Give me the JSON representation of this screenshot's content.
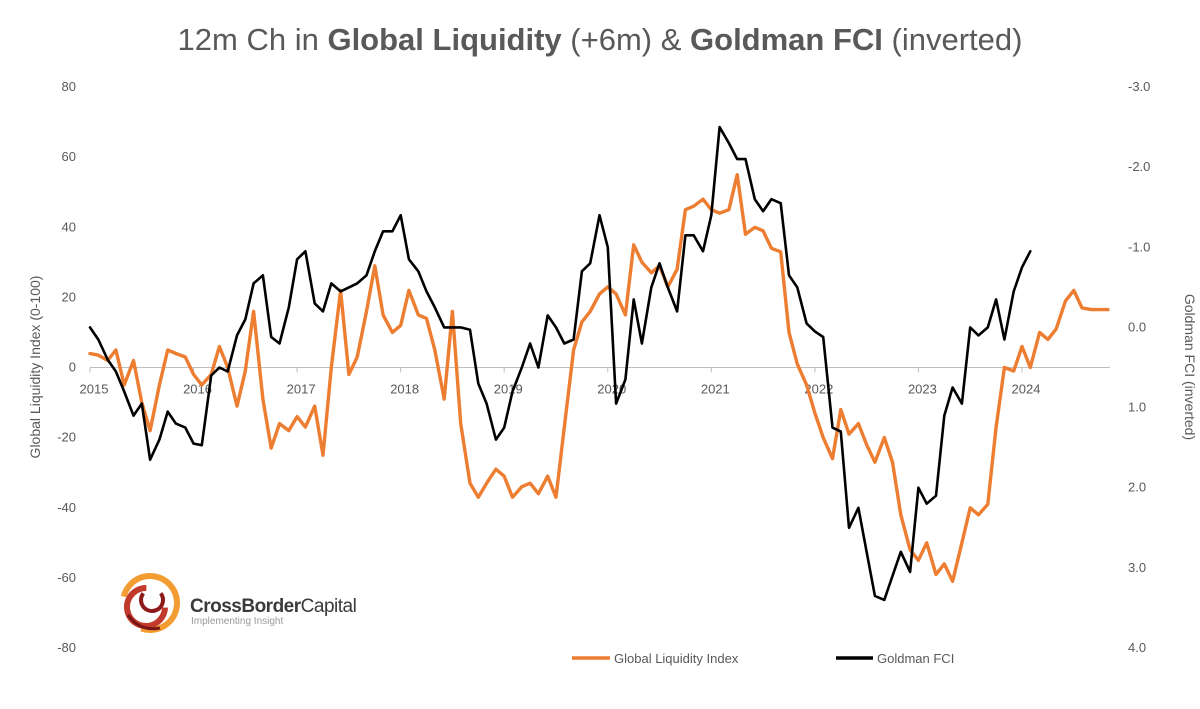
{
  "chart_data": {
    "type": "line",
    "title_parts": [
      {
        "text": "12m Ch in ",
        "bold": false
      },
      {
        "text": "Global Liquidity",
        "bold": true
      },
      {
        "text": " (+6m) & ",
        "bold": false
      },
      {
        "text": "Goldman FCI",
        "bold": true
      },
      {
        "text": " (inverted)",
        "bold": false
      }
    ],
    "ylabel": "Global Liquidity Index (0-100)",
    "y2label": "Goldman FCI (inverted)",
    "ylim": [
      -80,
      80
    ],
    "y_ticks": [
      80,
      60,
      40,
      20,
      0,
      -20,
      -40,
      -60,
      -80
    ],
    "y2lim": [
      4.0,
      -3.0
    ],
    "y2_ticks": [
      "-3.0",
      "-2.0",
      "-1.0",
      "0.0",
      "1.0",
      "2.0",
      "3.0",
      "4.0"
    ],
    "y2_tick_values": [
      -3.0,
      -2.0,
      -1.0,
      0.0,
      1.0,
      2.0,
      3.0,
      4.0
    ],
    "xlim": [
      2015.0,
      2024.85
    ],
    "x_ticks": [
      "2015",
      "2016",
      "2017",
      "2018",
      "2019",
      "2020",
      "2021",
      "2022",
      "2023",
      "2024"
    ],
    "x_tick_values": [
      2015,
      2016,
      2017,
      2018,
      2019,
      2020,
      2021,
      2022,
      2023,
      2024
    ],
    "legend_position": "bottom-right",
    "grid": false,
    "series": [
      {
        "name": "Global Liquidity Index",
        "axis": "left",
        "color": "#ED7D31",
        "x": [
          2015.0,
          2015.08,
          2015.17,
          2015.25,
          2015.33,
          2015.42,
          2015.5,
          2015.58,
          2015.67,
          2015.75,
          2015.83,
          2015.92,
          2016.0,
          2016.08,
          2016.17,
          2016.25,
          2016.33,
          2016.42,
          2016.5,
          2016.58,
          2016.67,
          2016.75,
          2016.83,
          2016.92,
          2017.0,
          2017.08,
          2017.17,
          2017.25,
          2017.33,
          2017.42,
          2017.5,
          2017.58,
          2017.67,
          2017.75,
          2017.83,
          2017.92,
          2018.0,
          2018.08,
          2018.17,
          2018.25,
          2018.33,
          2018.42,
          2018.5,
          2018.58,
          2018.67,
          2018.75,
          2018.83,
          2018.92,
          2019.0,
          2019.08,
          2019.17,
          2019.25,
          2019.33,
          2019.42,
          2019.5,
          2019.58,
          2019.67,
          2019.75,
          2019.83,
          2019.92,
          2020.0,
          2020.08,
          2020.17,
          2020.25,
          2020.33,
          2020.42,
          2020.5,
          2020.58,
          2020.67,
          2020.75,
          2020.83,
          2020.92,
          2021.0,
          2021.08,
          2021.17,
          2021.25,
          2021.33,
          2021.42,
          2021.5,
          2021.58,
          2021.67,
          2021.75,
          2021.83,
          2021.92,
          2022.0,
          2022.08,
          2022.17,
          2022.25,
          2022.33,
          2022.42,
          2022.5,
          2022.58,
          2022.67,
          2022.75,
          2022.83,
          2022.92,
          2023.0,
          2023.08,
          2023.17,
          2023.25,
          2023.33,
          2023.42,
          2023.5,
          2023.58,
          2023.67,
          2023.75,
          2023.83,
          2023.92,
          2024.0,
          2024.08,
          2024.17,
          2024.25,
          2024.33,
          2024.42,
          2024.5,
          2024.58,
          2024.67,
          2024.75,
          2024.83
        ],
        "values": [
          4,
          3.5,
          2,
          5,
          -5,
          2,
          -10,
          -18,
          -5,
          5,
          4,
          3,
          -2,
          -5,
          -2,
          6,
          0,
          -11,
          -1,
          16,
          -9,
          -23,
          -16,
          -18,
          -14,
          -17,
          -11,
          -25,
          0,
          22,
          -2,
          3,
          16,
          29,
          15,
          10,
          12,
          22,
          15,
          14,
          5,
          -9,
          16,
          -16,
          -33,
          -37,
          -33,
          -29,
          -31,
          -37,
          -34,
          -33,
          -36,
          -31,
          -37,
          -17,
          5,
          13,
          16,
          21,
          23,
          21,
          15,
          35,
          30,
          27,
          29,
          23,
          28,
          45,
          46,
          48,
          45,
          44,
          45,
          55,
          38,
          40,
          39,
          34,
          33,
          10,
          1,
          -5,
          -13,
          -20,
          -26,
          -12,
          -19,
          -16,
          -22,
          -27,
          -20,
          -27,
          -42,
          -52,
          -55,
          -50,
          -59,
          -56,
          -61,
          -50,
          -40,
          -42,
          -39,
          -17,
          0,
          -1,
          6,
          0,
          10,
          8,
          11,
          19,
          22,
          17,
          16.5,
          16.5,
          16.5
        ]
      },
      {
        "name": "Goldman FCI",
        "axis": "right",
        "color": "#000000",
        "x": [
          2015.0,
          2015.08,
          2015.17,
          2015.25,
          2015.33,
          2015.42,
          2015.5,
          2015.58,
          2015.67,
          2015.75,
          2015.83,
          2015.92,
          2016.0,
          2016.08,
          2016.17,
          2016.25,
          2016.33,
          2016.42,
          2016.5,
          2016.58,
          2016.67,
          2016.75,
          2016.83,
          2016.92,
          2017.0,
          2017.08,
          2017.17,
          2017.25,
          2017.33,
          2017.42,
          2017.5,
          2017.58,
          2017.67,
          2017.75,
          2017.83,
          2017.92,
          2018.0,
          2018.08,
          2018.17,
          2018.25,
          2018.33,
          2018.42,
          2018.5,
          2018.58,
          2018.67,
          2018.75,
          2018.83,
          2018.92,
          2019.0,
          2019.08,
          2019.17,
          2019.25,
          2019.33,
          2019.42,
          2019.5,
          2019.58,
          2019.67,
          2019.75,
          2019.83,
          2019.92,
          2020.0,
          2020.08,
          2020.17,
          2020.25,
          2020.33,
          2020.42,
          2020.5,
          2020.58,
          2020.67,
          2020.75,
          2020.83,
          2020.92,
          2021.0,
          2021.08,
          2021.17,
          2021.25,
          2021.33,
          2021.42,
          2021.5,
          2021.58,
          2021.67,
          2021.75,
          2021.83,
          2021.92,
          2022.0,
          2022.08,
          2022.17,
          2022.25,
          2022.33,
          2022.42,
          2022.5,
          2022.58,
          2022.67,
          2022.75,
          2022.83,
          2022.92,
          2023.0,
          2023.08,
          2023.17,
          2023.25,
          2023.33,
          2023.42,
          2023.5,
          2023.58,
          2023.67,
          2023.75,
          2023.83,
          2023.92,
          2024.0,
          2024.08
        ],
        "values": [
          0.0,
          0.15,
          0.4,
          0.55,
          0.8,
          1.1,
          0.95,
          1.65,
          1.4,
          1.05,
          1.2,
          1.25,
          1.45,
          1.47,
          0.6,
          0.5,
          0.55,
          0.1,
          -0.1,
          -0.55,
          -0.65,
          0.12,
          0.2,
          -0.25,
          -0.85,
          -0.95,
          -0.3,
          -0.2,
          -0.55,
          -0.45,
          -0.5,
          -0.55,
          -0.65,
          -0.95,
          -1.2,
          -1.2,
          -1.4,
          -0.85,
          -0.7,
          -0.45,
          -0.25,
          0.0,
          0.0,
          0.0,
          0.03,
          0.7,
          0.95,
          1.4,
          1.25,
          0.8,
          0.5,
          0.2,
          0.5,
          -0.15,
          0.0,
          0.2,
          0.15,
          -0.7,
          -0.8,
          -1.4,
          -1.0,
          0.95,
          0.65,
          -0.35,
          0.2,
          -0.5,
          -0.8,
          -0.5,
          -0.2,
          -1.15,
          -1.15,
          -0.95,
          -1.4,
          -2.5,
          -2.3,
          -2.1,
          -2.1,
          -1.6,
          -1.45,
          -1.6,
          -1.55,
          -0.65,
          -0.5,
          -0.05,
          0.05,
          0.12,
          1.25,
          1.3,
          2.5,
          2.25,
          2.8,
          3.35,
          3.4,
          3.1,
          2.8,
          3.05,
          2.0,
          2.2,
          2.1,
          1.1,
          0.75,
          0.95,
          0.0,
          0.1,
          0.0,
          -0.35,
          0.15,
          -0.45,
          -0.75,
          -0.95
        ]
      }
    ]
  },
  "logo": {
    "name_bold": "CrossBorder",
    "name_light": "Capital",
    "tagline": "Implementing Insight"
  }
}
